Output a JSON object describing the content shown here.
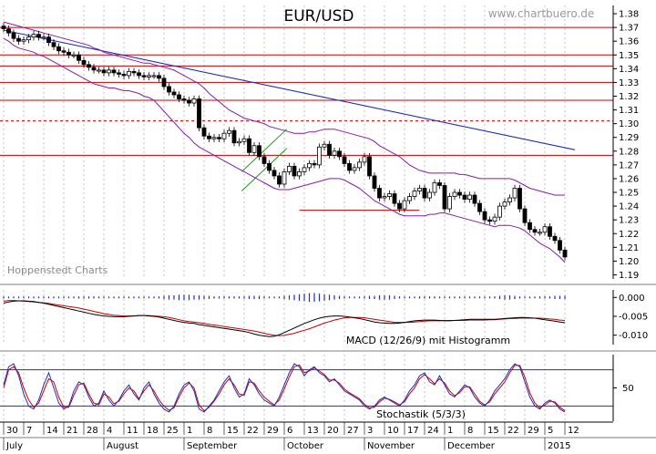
{
  "chart_data": {
    "type": "line",
    "title": "EUR/USD",
    "watermark": "www.chartbuero.de",
    "source_note": "Hoppenstedt Charts",
    "colors": {
      "candle": "#000000",
      "bollinger": "#8b1aa8",
      "trendline": "#1f2fbf",
      "horizontal_lines": "#cc0000",
      "macd": "#000000",
      "macd_signal": "#cc0000",
      "macd_histogram": "#1f2fbf",
      "stoch_k": "#1f2fbf",
      "stoch_d": "#cc0000",
      "grid": "#999999"
    },
    "price_panel": {
      "ylim": [
        1.187,
        1.386
      ],
      "y_ticks": [
        "1.38",
        "1.37",
        "1.36",
        "1.35",
        "1.34",
        "1.33",
        "1.32",
        "1.31",
        "1.30",
        "1.29",
        "1.28",
        "1.27",
        "1.26",
        "1.25",
        "1.24",
        "1.23",
        "1.22",
        "1.21",
        "1.20",
        "1.19"
      ],
      "horizontal_lines": [
        1.37,
        1.35,
        1.342,
        1.33,
        1.317,
        1.302,
        1.277
      ],
      "dashed_lines": [
        1.302
      ],
      "short_lines": [
        {
          "x": [
            59,
            83
          ],
          "y": 1.237
        }
      ],
      "trendline": {
        "x": [
          0,
          114
        ],
        "y": [
          1.368,
          1.281
        ]
      },
      "channel": {
        "x": [
          47.5,
          56.5
        ],
        "lower_y": [
          1.251,
          1.282
        ],
        "upper_y": [
          1.265,
          1.296
        ]
      },
      "close": [
        1.369,
        1.366,
        1.362,
        1.36,
        1.361,
        1.363,
        1.365,
        1.363,
        1.363,
        1.359,
        1.356,
        1.353,
        1.352,
        1.35,
        1.35,
        1.346,
        1.343,
        1.341,
        1.339,
        1.339,
        1.337,
        1.339,
        1.337,
        1.336,
        1.335,
        1.338,
        1.337,
        1.335,
        1.334,
        1.335,
        1.335,
        1.333,
        1.327,
        1.323,
        1.321,
        1.318,
        1.317,
        1.315,
        1.318,
        1.297,
        1.291,
        1.289,
        1.29,
        1.289,
        1.293,
        1.295,
        1.286,
        1.287,
        1.289,
        1.279,
        1.284,
        1.276,
        1.271,
        1.266,
        1.262,
        1.256,
        1.265,
        1.269,
        1.262,
        1.265,
        1.268,
        1.271,
        1.27,
        1.283,
        1.285,
        1.277,
        1.28,
        1.276,
        1.271,
        1.266,
        1.268,
        1.272,
        1.276,
        1.262,
        1.253,
        1.246,
        1.247,
        1.249,
        1.242,
        1.238,
        1.244,
        1.247,
        1.251,
        1.253,
        1.246,
        1.25,
        1.257,
        1.255,
        1.238,
        1.247,
        1.25,
        1.248,
        1.245,
        1.248,
        1.242,
        1.236,
        1.23,
        1.229,
        1.232,
        1.24,
        1.243,
        1.246,
        1.253,
        1.238,
        1.228,
        1.223,
        1.221,
        1.221,
        1.225,
        1.218,
        1.215,
        1.208,
        1.203
      ],
      "bollinger_upper": [
        1.374,
        1.373,
        1.372,
        1.371,
        1.37,
        1.369,
        1.368,
        1.367,
        1.366,
        1.365,
        1.364,
        1.363,
        1.362,
        1.361,
        1.36,
        1.359,
        1.358,
        1.357,
        1.355,
        1.354,
        1.352,
        1.351,
        1.35,
        1.349,
        1.348,
        1.347,
        1.346,
        1.345,
        1.344,
        1.344,
        1.343,
        1.342,
        1.341,
        1.34,
        1.339,
        1.337,
        1.335,
        1.333,
        1.331,
        1.329,
        1.326,
        1.322,
        1.319,
        1.316,
        1.313,
        1.31,
        1.308,
        1.306,
        1.304,
        1.303,
        1.302,
        1.301,
        1.3,
        1.298,
        1.297,
        1.296,
        1.295,
        1.294,
        1.293,
        1.293,
        1.293,
        1.294,
        1.294,
        1.295,
        1.296,
        1.296,
        1.296,
        1.295,
        1.294,
        1.293,
        1.292,
        1.291,
        1.29,
        1.289,
        1.287,
        1.284,
        1.282,
        1.28,
        1.278,
        1.276,
        1.273,
        1.27,
        1.268,
        1.266,
        1.265,
        1.264,
        1.264,
        1.264,
        1.264,
        1.264,
        1.264,
        1.263,
        1.263,
        1.262,
        1.261,
        1.26,
        1.26,
        1.26,
        1.26,
        1.26,
        1.26,
        1.26,
        1.259,
        1.257,
        1.255,
        1.253,
        1.252,
        1.251,
        1.25,
        1.249,
        1.248,
        1.248,
        1.248
      ],
      "bollinger_lower": [
        1.362,
        1.36,
        1.357,
        1.355,
        1.354,
        1.353,
        1.352,
        1.35,
        1.349,
        1.347,
        1.345,
        1.343,
        1.341,
        1.339,
        1.337,
        1.335,
        1.333,
        1.331,
        1.329,
        1.328,
        1.327,
        1.326,
        1.326,
        1.325,
        1.324,
        1.324,
        1.323,
        1.322,
        1.32,
        1.319,
        1.317,
        1.313,
        1.309,
        1.305,
        1.301,
        1.297,
        1.293,
        1.29,
        1.286,
        1.283,
        1.281,
        1.279,
        1.277,
        1.275,
        1.273,
        1.271,
        1.269,
        1.267,
        1.265,
        1.263,
        1.261,
        1.259,
        1.257,
        1.255,
        1.253,
        1.252,
        1.252,
        1.252,
        1.253,
        1.254,
        1.255,
        1.256,
        1.257,
        1.258,
        1.259,
        1.26,
        1.26,
        1.26,
        1.259,
        1.257,
        1.255,
        1.253,
        1.25,
        1.247,
        1.244,
        1.242,
        1.24,
        1.238,
        1.236,
        1.234,
        1.233,
        1.233,
        1.233,
        1.233,
        1.233,
        1.234,
        1.234,
        1.235,
        1.235,
        1.234,
        1.233,
        1.232,
        1.231,
        1.23,
        1.229,
        1.228,
        1.227,
        1.226,
        1.225,
        1.226,
        1.226,
        1.226,
        1.225,
        1.224,
        1.222,
        1.219,
        1.216,
        1.213,
        1.211,
        1.209,
        1.206,
        1.203,
        1.199
      ]
    },
    "macd_panel": {
      "label": "MACD (12/26/9) mit Histogramm",
      "ylim": [
        -0.0125,
        0.002
      ],
      "y_ticks": [
        "0.000",
        "-0.005",
        "-0.010"
      ],
      "macd": [
        -0.0015,
        -0.0012,
        -0.001,
        -0.0009,
        -0.0009,
        -0.001,
        -0.0011,
        -0.0013,
        -0.0015,
        -0.0018,
        -0.0021,
        -0.0024,
        -0.0027,
        -0.003,
        -0.0033,
        -0.0036,
        -0.0039,
        -0.0042,
        -0.0045,
        -0.0047,
        -0.0049,
        -0.005,
        -0.0051,
        -0.0051,
        -0.0051,
        -0.005,
        -0.0049,
        -0.0048,
        -0.0048,
        -0.0049,
        -0.005,
        -0.0052,
        -0.0055,
        -0.0058,
        -0.0061,
        -0.0064,
        -0.0066,
        -0.0068,
        -0.0069,
        -0.0072,
        -0.0074,
        -0.0076,
        -0.0078,
        -0.008,
        -0.0082,
        -0.0084,
        -0.0086,
        -0.0088,
        -0.009,
        -0.0093,
        -0.0097,
        -0.01,
        -0.0102,
        -0.0104,
        -0.0103,
        -0.0099,
        -0.0093,
        -0.0087,
        -0.0081,
        -0.0075,
        -0.0069,
        -0.0064,
        -0.0059,
        -0.0055,
        -0.0052,
        -0.005,
        -0.0049,
        -0.0049,
        -0.005,
        -0.0052,
        -0.0054,
        -0.0056,
        -0.0059,
        -0.0062,
        -0.0065,
        -0.0067,
        -0.0068,
        -0.0069,
        -0.0069,
        -0.0068,
        -0.0066,
        -0.0064,
        -0.0062,
        -0.0061,
        -0.006,
        -0.006,
        -0.006,
        -0.0061,
        -0.0062,
        -0.0062,
        -0.0061,
        -0.006,
        -0.0059,
        -0.0058,
        -0.0058,
        -0.0058,
        -0.0058,
        -0.0058,
        -0.0058,
        -0.0057,
        -0.0056,
        -0.0055,
        -0.0054,
        -0.0053,
        -0.0053,
        -0.0054,
        -0.0055,
        -0.0057,
        -0.0059,
        -0.0061,
        -0.0063,
        -0.0065,
        -0.0067
      ],
      "signal": [
        -0.001,
        -0.0008,
        -0.0008,
        -0.0009,
        -0.001,
        -0.0011,
        -0.0012,
        -0.0013,
        -0.0014,
        -0.0016,
        -0.0018,
        -0.002,
        -0.0022,
        -0.0024,
        -0.0026,
        -0.0028,
        -0.0031,
        -0.0034,
        -0.0037,
        -0.004,
        -0.0043,
        -0.0045,
        -0.0047,
        -0.0048,
        -0.0049,
        -0.0049,
        -0.0049,
        -0.0048,
        -0.0048,
        -0.0048,
        -0.0049,
        -0.005,
        -0.0051,
        -0.0053,
        -0.0056,
        -0.0059,
        -0.0062,
        -0.0064,
        -0.0065,
        -0.0067,
        -0.0069,
        -0.0071,
        -0.0073,
        -0.0075,
        -0.0077,
        -0.0079,
        -0.0081,
        -0.0083,
        -0.0085,
        -0.0087,
        -0.0089,
        -0.0092,
        -0.0095,
        -0.0098,
        -0.01,
        -0.0101,
        -0.01,
        -0.0098,
        -0.0095,
        -0.0091,
        -0.0087,
        -0.0083,
        -0.0078,
        -0.0073,
        -0.0068,
        -0.0064,
        -0.006,
        -0.0057,
        -0.0054,
        -0.0053,
        -0.0053,
        -0.0053,
        -0.0054,
        -0.0056,
        -0.0058,
        -0.006,
        -0.0062,
        -0.0064,
        -0.0066,
        -0.0066,
        -0.0066,
        -0.0066,
        -0.0065,
        -0.0064,
        -0.0063,
        -0.0062,
        -0.0062,
        -0.0062,
        -0.0061,
        -0.0061,
        -0.0061,
        -0.0061,
        -0.0061,
        -0.006,
        -0.006,
        -0.006,
        -0.006,
        -0.0059,
        -0.0059,
        -0.0058,
        -0.0057,
        -0.0056,
        -0.0056,
        -0.0055,
        -0.0055,
        -0.0055,
        -0.0055,
        -0.0055,
        -0.0056,
        -0.0057,
        -0.0058,
        -0.006,
        -0.0061
      ],
      "histogram": [
        -0.0002,
        -0.0001,
        -0.0001,
        -0.0001,
        0,
        0,
        0,
        0,
        0,
        0,
        0,
        0,
        0,
        -0.0001,
        -0.0001,
        -0.0002,
        -0.0002,
        -0.0002,
        -0.0002,
        -0.0001,
        -0.0001,
        -0.0001,
        0,
        0,
        0.0001,
        0.0001,
        0,
        0,
        0,
        -0.0001,
        -0.0001,
        -0.0002,
        -0.0003,
        -0.0004,
        -0.0004,
        -0.0005,
        -0.0005,
        -0.0005,
        -0.0004,
        -0.0004,
        -0.0003,
        -0.0003,
        -0.0002,
        -0.0002,
        -0.0002,
        -0.0002,
        -0.0002,
        -0.0002,
        -0.0002,
        -0.0003,
        -0.0003,
        -0.0003,
        -0.0002,
        -0.0001,
        0,
        0.0001,
        0.0003,
        0.0004,
        0.0005,
        0.0006,
        0.0007,
        0.0008,
        0.0008,
        0.0007,
        0.0006,
        0.0005,
        0.0004,
        0.0003,
        0.0002,
        0.0001,
        0,
        -0.0001,
        -0.0002,
        -0.0003,
        -0.0003,
        -0.0004,
        -0.0004,
        -0.0004,
        -0.0003,
        -0.0002,
        -0.0001,
        0,
        0.0001,
        0.0002,
        0.0002,
        0.0002,
        0.0002,
        0.0001,
        0.0001,
        0,
        0,
        0,
        0.0001,
        0.0001,
        0.0001,
        0.0001,
        0.0001,
        0.0001,
        0.0002,
        0.0003,
        0.0004,
        0.0004,
        0.0003,
        0.0002,
        0.0001,
        0,
        -0.0001,
        -0.0002,
        -0.0002,
        -0.0002,
        -0.0003,
        -0.0003,
        -0.0003
      ]
    },
    "stoch_panel": {
      "label": "Stochastik (5/3/3)",
      "ylim": [
        -5,
        105
      ],
      "y_ticks": [
        "50"
      ],
      "levels": [
        80,
        20
      ],
      "k": [
        55,
        85,
        90,
        70,
        40,
        20,
        15,
        30,
        55,
        75,
        50,
        25,
        15,
        20,
        45,
        60,
        55,
        35,
        20,
        25,
        45,
        30,
        20,
        30,
        45,
        55,
        40,
        30,
        50,
        60,
        40,
        25,
        15,
        10,
        20,
        40,
        55,
        60,
        45,
        15,
        10,
        20,
        30,
        45,
        60,
        70,
        50,
        35,
        40,
        65,
        55,
        40,
        30,
        25,
        20,
        35,
        55,
        75,
        90,
        85,
        70,
        80,
        85,
        75,
        70,
        60,
        65,
        55,
        45,
        40,
        35,
        30,
        20,
        15,
        20,
        30,
        35,
        30,
        25,
        20,
        30,
        45,
        55,
        70,
        75,
        60,
        55,
        70,
        55,
        40,
        35,
        45,
        55,
        50,
        35,
        25,
        20,
        30,
        45,
        55,
        65,
        80,
        90,
        85,
        60,
        35,
        20,
        15,
        25,
        30,
        25,
        15,
        10
      ],
      "d": [
        50,
        80,
        85,
        75,
        50,
        30,
        18,
        25,
        45,
        65,
        60,
        35,
        18,
        18,
        38,
        55,
        58,
        40,
        25,
        22,
        40,
        35,
        24,
        28,
        40,
        50,
        45,
        32,
        45,
        55,
        45,
        30,
        20,
        13,
        17,
        35,
        50,
        58,
        50,
        22,
        12,
        18,
        28,
        40,
        55,
        65,
        55,
        40,
        38,
        60,
        58,
        45,
        35,
        28,
        22,
        30,
        48,
        68,
        85,
        88,
        75,
        78,
        83,
        78,
        72,
        63,
        63,
        58,
        48,
        42,
        37,
        32,
        23,
        17,
        18,
        27,
        33,
        31,
        27,
        22,
        27,
        40,
        50,
        65,
        72,
        65,
        57,
        65,
        58,
        45,
        37,
        42,
        52,
        52,
        40,
        28,
        22,
        27,
        40,
        50,
        60,
        75,
        87,
        87,
        68,
        42,
        25,
        17,
        22,
        28,
        27,
        18,
        12
      ]
    },
    "x_axis": {
      "n_days": 114,
      "tick_labels": [
        "30",
        "7",
        "14",
        "21",
        "28",
        "4",
        "11",
        "18",
        "25",
        "1",
        "8",
        "15",
        "22",
        "29",
        "6",
        "13",
        "20",
        "27",
        "3",
        "10",
        "17",
        "24",
        "1",
        "8",
        "15",
        "22",
        "29",
        "5",
        "12"
      ],
      "month_labels": [
        "July",
        "August",
        "September",
        "October",
        "November",
        "December",
        "2015"
      ]
    }
  }
}
